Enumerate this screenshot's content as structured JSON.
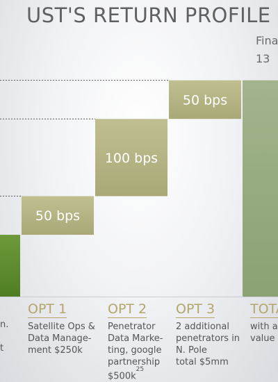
{
  "title": "UST'S RETURN PROFILE",
  "total_caption": [
    "Fina",
    "13"
  ],
  "chart_data": {
    "type": "bar",
    "subtype": "waterfall",
    "ylim": [
      0,
      330
    ],
    "steps": [
      {
        "id": "opt1",
        "label": "50 bps",
        "value": 50
      },
      {
        "id": "opt2",
        "label": "100 bps",
        "value": 100
      },
      {
        "id": "opt3",
        "label": "50 bps",
        "value": 50
      }
    ],
    "base_value": 80,
    "total_value": 280,
    "bar_colors": {
      "base": "#5b8a2a",
      "step": "#b7b585",
      "total": "#9aae82"
    }
  },
  "columns": [
    {
      "head": "",
      "lines": [
        "n.",
        "",
        "t"
      ]
    },
    {
      "head": "OPT 1",
      "lines": [
        "Satellite Ops &",
        "Data Manage-",
        "ment $250k"
      ]
    },
    {
      "head": "OPT 2",
      "lines": [
        "Penetrator",
        "Data Marke-",
        "ting, google",
        "partnership",
        "$500k"
      ],
      "footnote": "25"
    },
    {
      "head": "OPT 3",
      "lines": [
        "2 additional",
        "penetrators in",
        "N. Pole",
        "total $5mm"
      ]
    },
    {
      "head": "TOTA",
      "lines": [
        "with a",
        "value s"
      ]
    }
  ]
}
